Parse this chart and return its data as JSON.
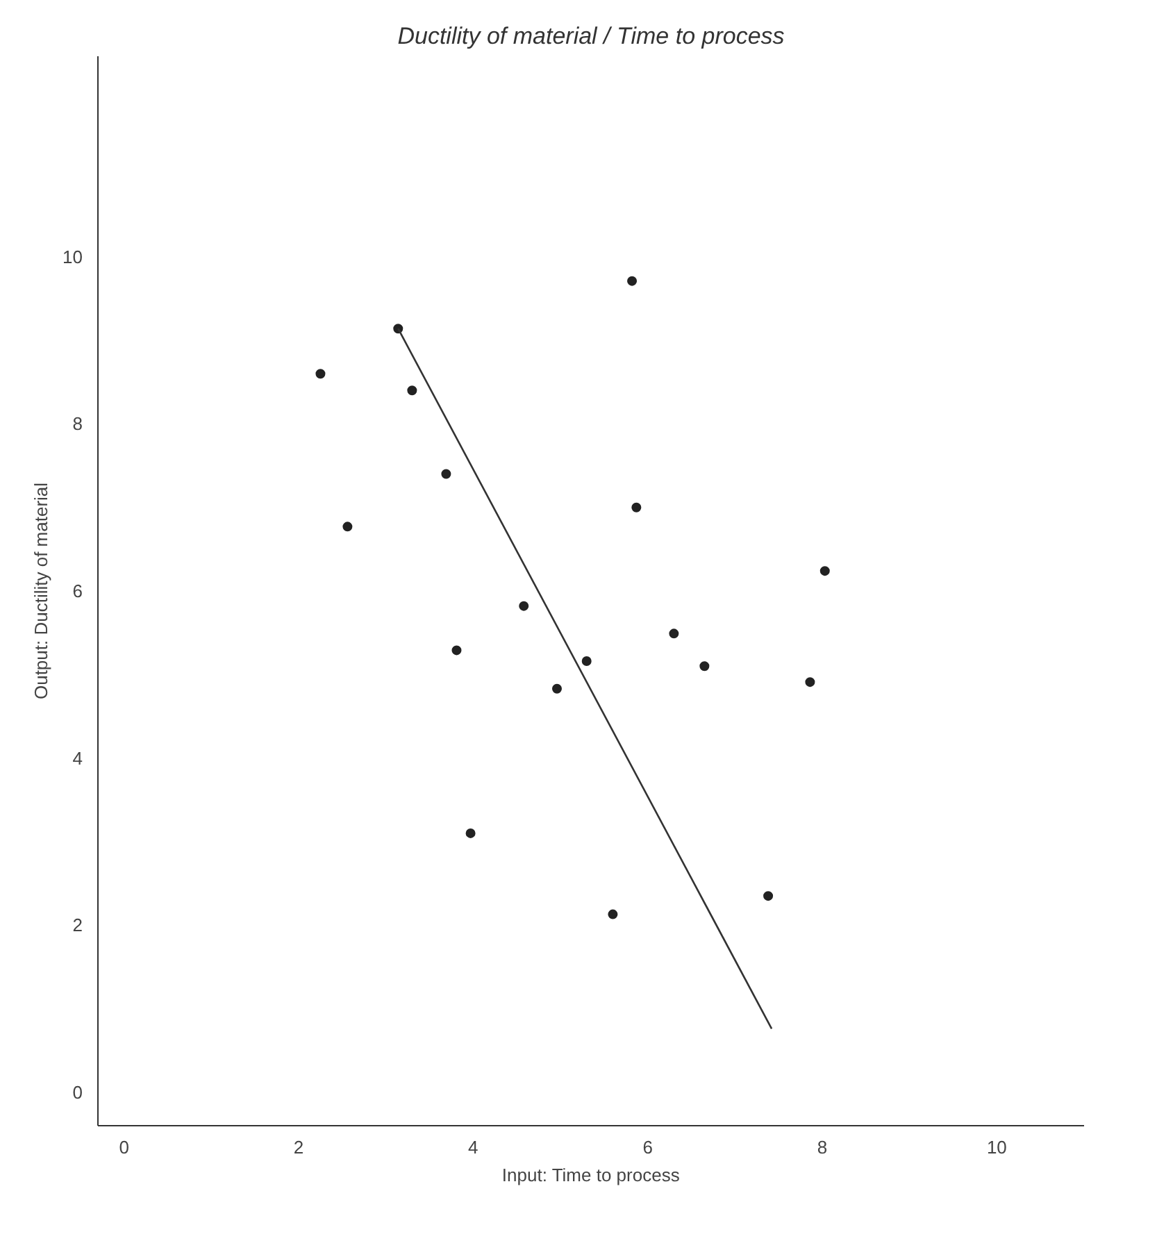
{
  "chart_data": {
    "type": "scatter",
    "title": "Ductility of material / Time to process",
    "xlabel": "Input: Time to process",
    "ylabel": "Output: Ductility of material",
    "xlim": [
      -0.3,
      11
    ],
    "ylim": [
      -0.4,
      12.4
    ],
    "xticks": [
      0,
      2,
      4,
      6,
      8,
      10
    ],
    "yticks": [
      0,
      2,
      4,
      6,
      8,
      10
    ],
    "grid": false,
    "series": [
      {
        "marker": "circle",
        "color": "#222222",
        "x": [
          2.25,
          2.56,
          3.14,
          3.3,
          3.69,
          3.81,
          3.97,
          4.58,
          4.96,
          5.3,
          5.82,
          5.87,
          5.6,
          6.3,
          6.65,
          7.38,
          7.86,
          8.03
        ],
        "values": [
          8.6,
          6.77,
          9.14,
          8.4,
          7.4,
          5.29,
          3.1,
          5.82,
          4.83,
          5.16,
          9.71,
          7.0,
          2.13,
          5.49,
          5.1,
          2.35,
          4.91,
          6.24
        ]
      },
      {
        "type": "line",
        "marker": "none",
        "color": "#333333",
        "x": [
          3.14,
          7.42
        ],
        "values": [
          9.14,
          0.76
        ]
      }
    ]
  }
}
